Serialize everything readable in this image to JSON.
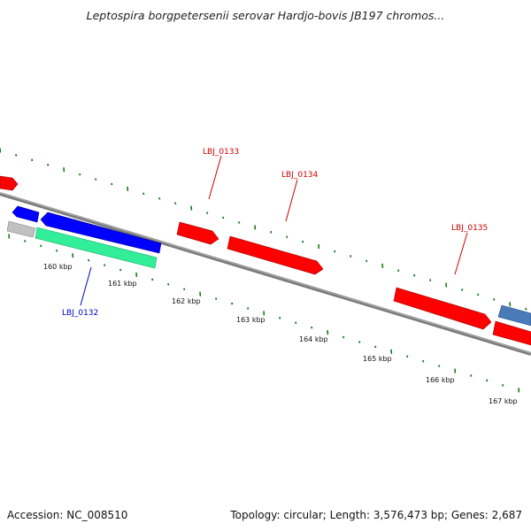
{
  "title": "Leptospira borgpetersenii serovar Hardjo-bovis JB197 chromos...",
  "footer": {
    "accession": "Accession: NC_008510",
    "topology": "Topology: circular; Length: 3,576,473 bp; Genes: 2,687"
  },
  "scale_labels": [
    "160 kbp",
    "161 kbp",
    "162 kbp",
    "163 kbp",
    "164 kbp",
    "165 kbp",
    "166 kbp",
    "167 kbp"
  ],
  "gene_labels": [
    {
      "name": "LBJ_0133",
      "color": "#cc0000"
    },
    {
      "name": "LBJ_0134",
      "color": "#cc0000"
    },
    {
      "name": "LBJ_0135",
      "color": "#cc0000"
    },
    {
      "name": "LBJ_0132",
      "color": "#0000cc"
    }
  ],
  "colors": {
    "backbone": "#7a7a7a",
    "tick": "#1a7a1a",
    "gene_red": "#ff0000",
    "gene_blue": "#0000ff",
    "gene_teal": "#33ee99",
    "gene_gray": "#c0c0c0",
    "gene_steel": "#4a7ab8"
  }
}
